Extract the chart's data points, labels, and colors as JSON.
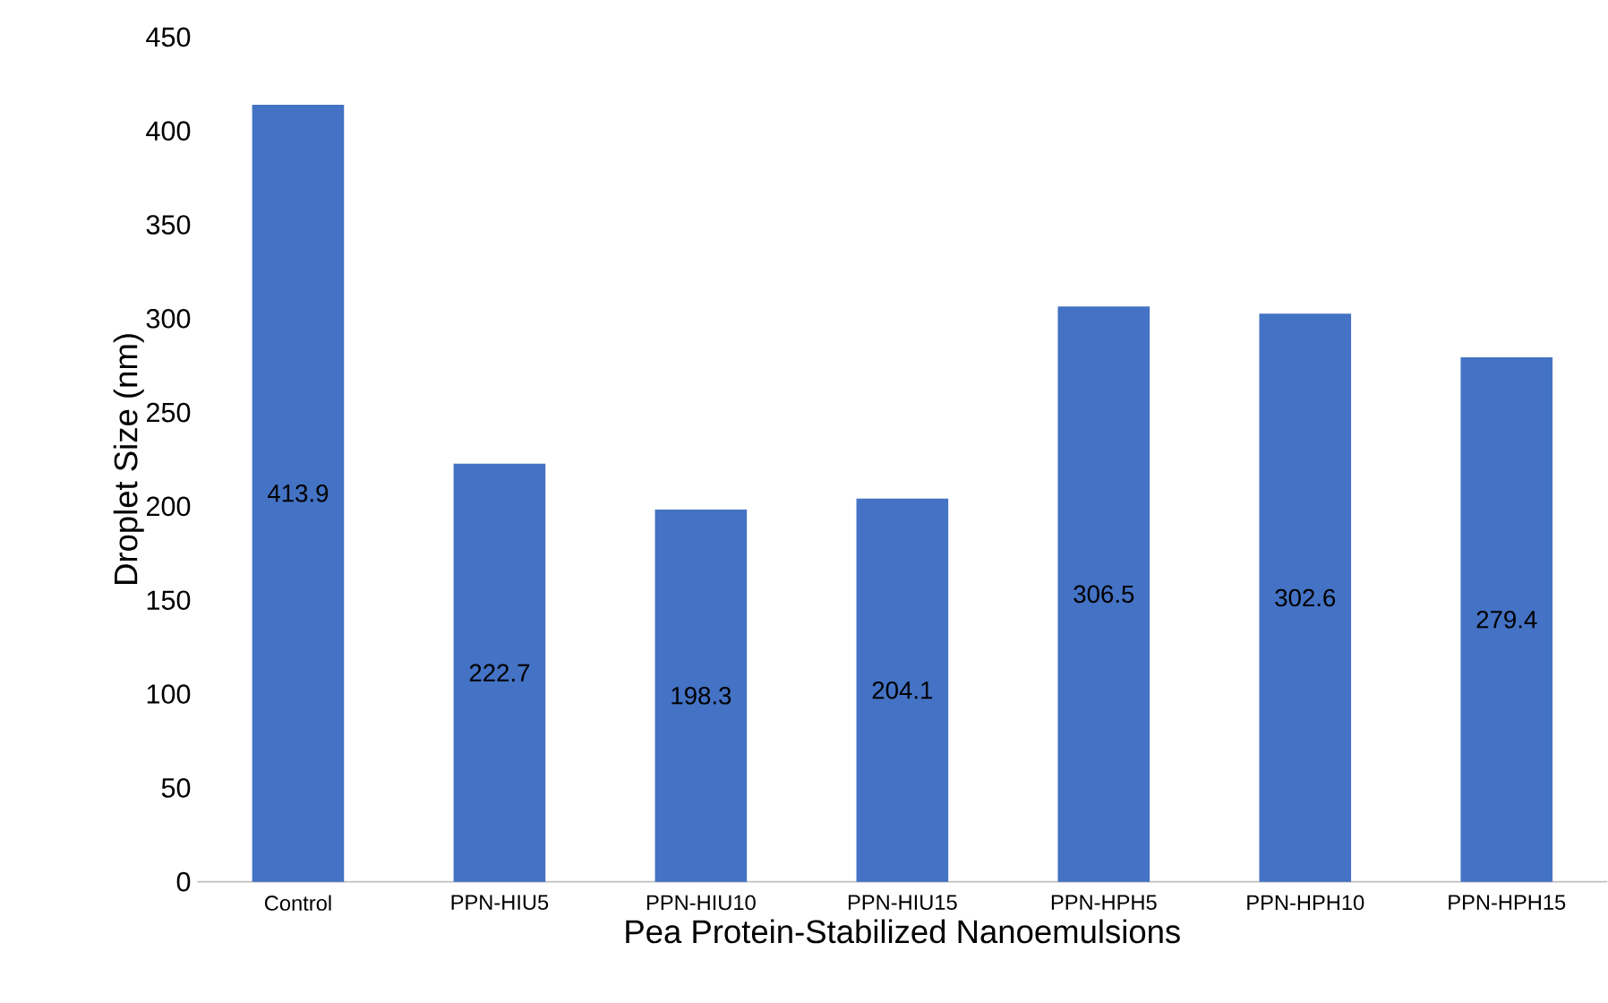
{
  "chart_data": {
    "type": "bar",
    "xlabel": "Pea Protein-Stabilized Nanoemulsions",
    "ylabel": "Droplet Size (nm)",
    "categories": [
      "Control",
      "PPN-HIU5",
      "PPN-HIU10",
      "PPN-HIU15",
      "PPN-HPH5",
      "PPN-HPH10",
      "PPN-HPH15"
    ],
    "values": [
      413.9,
      222.7,
      198.3,
      204.1,
      306.5,
      302.6,
      279.4
    ],
    "color": "#4472c4",
    "ylim": [
      0,
      450
    ],
    "yticks": [
      0,
      50,
      100,
      150,
      200,
      250,
      300,
      350,
      400,
      450
    ],
    "data_labels": true
  }
}
